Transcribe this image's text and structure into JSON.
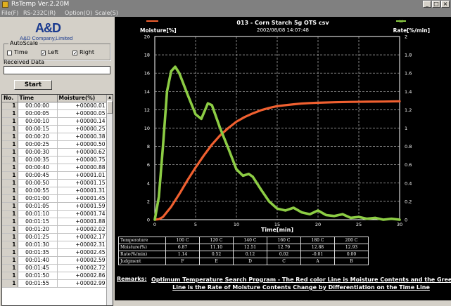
{
  "window": {
    "title": "RsTemp Ver.2.20M"
  },
  "menu": [
    "File(F)",
    "RS-232C(R)",
    "Option(O)",
    "Scale(S)"
  ],
  "logo": {
    "mark": "A&D",
    "company": "A&D Company,Limited"
  },
  "autoscale": {
    "label": "AutoScale",
    "options": [
      {
        "label": "Time",
        "checked": false
      },
      {
        "label": "Left",
        "checked": true
      },
      {
        "label": "Right",
        "checked": true
      }
    ]
  },
  "received": {
    "label": "Received Data",
    "value": ""
  },
  "start_label": "Start",
  "grid": {
    "headers": [
      "No.",
      "Time",
      "Moisture(%)"
    ],
    "rows": [
      [
        "1",
        "00:00:00",
        "+00000.01"
      ],
      [
        "1",
        "00:00:05",
        "+00000.05"
      ],
      [
        "1",
        "00:00:10",
        "+00000.14"
      ],
      [
        "1",
        "00:00:15",
        "+00000.25"
      ],
      [
        "1",
        "00:00:20",
        "+00000.38"
      ],
      [
        "1",
        "00:00:25",
        "+00000.50"
      ],
      [
        "1",
        "00:00:30",
        "+00000.62"
      ],
      [
        "1",
        "00:00:35",
        "+00000.75"
      ],
      [
        "1",
        "00:00:40",
        "+00000.88"
      ],
      [
        "1",
        "00:00:45",
        "+00001.01"
      ],
      [
        "1",
        "00:00:50",
        "+00001.15"
      ],
      [
        "1",
        "00:00:55",
        "+00001.31"
      ],
      [
        "1",
        "00:01:00",
        "+00001.45"
      ],
      [
        "1",
        "00:01:05",
        "+00001.59"
      ],
      [
        "1",
        "00:01:10",
        "+00001.74"
      ],
      [
        "1",
        "00:01:15",
        "+00001.88"
      ],
      [
        "1",
        "00:01:20",
        "+00002.02"
      ],
      [
        "1",
        "00:01:25",
        "+00002.17"
      ],
      [
        "1",
        "00:01:30",
        "+00002.31"
      ],
      [
        "1",
        "00:01:35",
        "+00002.45"
      ],
      [
        "1",
        "00:01:40",
        "+00002.59"
      ],
      [
        "1",
        "00:01:45",
        "+00002.72"
      ],
      [
        "1",
        "00:01:50",
        "+00002.86"
      ],
      [
        "1",
        "00:01:55",
        "+00002.99"
      ]
    ]
  },
  "colors": {
    "moisture": "#f06030",
    "rate": "#8ccc44"
  },
  "chart_data": {
    "type": "line",
    "title": "013 - Corn Starch  5g  OTS csv",
    "subtitle": "2002/08/08  14:07:48",
    "xlabel": "Time[min]",
    "ylabel_left": "Moisture[%]",
    "ylabel_right": "Rate[%/min]",
    "xlim": [
      0,
      30
    ],
    "ylim_left": [
      0,
      20
    ],
    "ylim_right": [
      0,
      2
    ],
    "x_ticks": [
      "0",
      "5",
      "10",
      "15",
      "20",
      "25",
      "30"
    ],
    "y_ticks_left": [
      "0",
      "2",
      "4",
      "6",
      "8",
      "10",
      "12",
      "14",
      "16",
      "18",
      "20"
    ],
    "y_ticks_right": [
      "0",
      "0.2",
      "0.4",
      "0.6",
      "0.8",
      "1",
      "1.2",
      "1.4",
      "1.6",
      "1.8",
      "2"
    ],
    "grid": true,
    "series": [
      {
        "axis": "left",
        "points": [
          [
            0,
            0
          ],
          [
            0.5,
            0.05
          ],
          [
            1,
            0.3
          ],
          [
            2,
            1.4
          ],
          [
            3,
            2.8
          ],
          [
            4,
            4.3
          ],
          [
            5,
            5.7
          ],
          [
            6,
            7.0
          ],
          [
            7,
            8.2
          ],
          [
            8,
            9.2
          ],
          [
            9,
            10.0
          ],
          [
            10,
            10.7
          ],
          [
            11,
            11.2
          ],
          [
            12,
            11.6
          ],
          [
            13,
            11.95
          ],
          [
            14,
            12.2
          ],
          [
            15,
            12.4
          ],
          [
            16,
            12.5
          ],
          [
            17,
            12.6
          ],
          [
            18,
            12.68
          ],
          [
            19,
            12.73
          ],
          [
            20,
            12.77
          ],
          [
            22,
            12.82
          ],
          [
            24,
            12.86
          ],
          [
            26,
            12.88
          ],
          [
            28,
            12.9
          ],
          [
            30,
            12.93
          ]
        ]
      },
      {
        "axis": "right",
        "points": [
          [
            0,
            0
          ],
          [
            0.5,
            0.25
          ],
          [
            1,
            0.8
          ],
          [
            1.5,
            1.4
          ],
          [
            2,
            1.62
          ],
          [
            2.5,
            1.67
          ],
          [
            3,
            1.6
          ],
          [
            4,
            1.37
          ],
          [
            5,
            1.15
          ],
          [
            5.7,
            1.1
          ],
          [
            6.5,
            1.27
          ],
          [
            7,
            1.25
          ],
          [
            8,
            1.0
          ],
          [
            9,
            0.78
          ],
          [
            10,
            0.55
          ],
          [
            10.8,
            0.48
          ],
          [
            11.5,
            0.5
          ],
          [
            12,
            0.47
          ],
          [
            13,
            0.33
          ],
          [
            14,
            0.2
          ],
          [
            15,
            0.12
          ],
          [
            16,
            0.1
          ],
          [
            17,
            0.13
          ],
          [
            18,
            0.08
          ],
          [
            19,
            0.06
          ],
          [
            20,
            0.1
          ],
          [
            21,
            0.05
          ],
          [
            22,
            0.04
          ],
          [
            23,
            0.06
          ],
          [
            24,
            0.02
          ],
          [
            25,
            0.03
          ],
          [
            26,
            0.01
          ],
          [
            27,
            0.02
          ],
          [
            28,
            0.0
          ],
          [
            29,
            0.01
          ],
          [
            30,
            0.0
          ]
        ]
      }
    ]
  },
  "summary_table": {
    "rows": [
      [
        "Temperature",
        "100 C",
        "120 C",
        "140 C",
        "160 C",
        "180 C",
        "200 C"
      ],
      [
        "Moisture(%)",
        "6.87",
        "11.10",
        "12.51",
        "12.79",
        "12.88",
        "12.93"
      ],
      [
        "Rate(%/min)",
        "1.14",
        "0.52",
        "0.12",
        "0.02",
        "-0.01",
        "0.00"
      ],
      [
        "Judgment",
        "F",
        "E",
        "D",
        "C",
        "A",
        "B"
      ]
    ]
  },
  "remarks": {
    "label": "Remarks:",
    "line1": "Optimum Temperature Search Program  - The Red color Line is Moisture Contents and the Green color",
    "line2": "Line is the Rate of Moisture Contents Change by Differentiation on the Time Line"
  }
}
